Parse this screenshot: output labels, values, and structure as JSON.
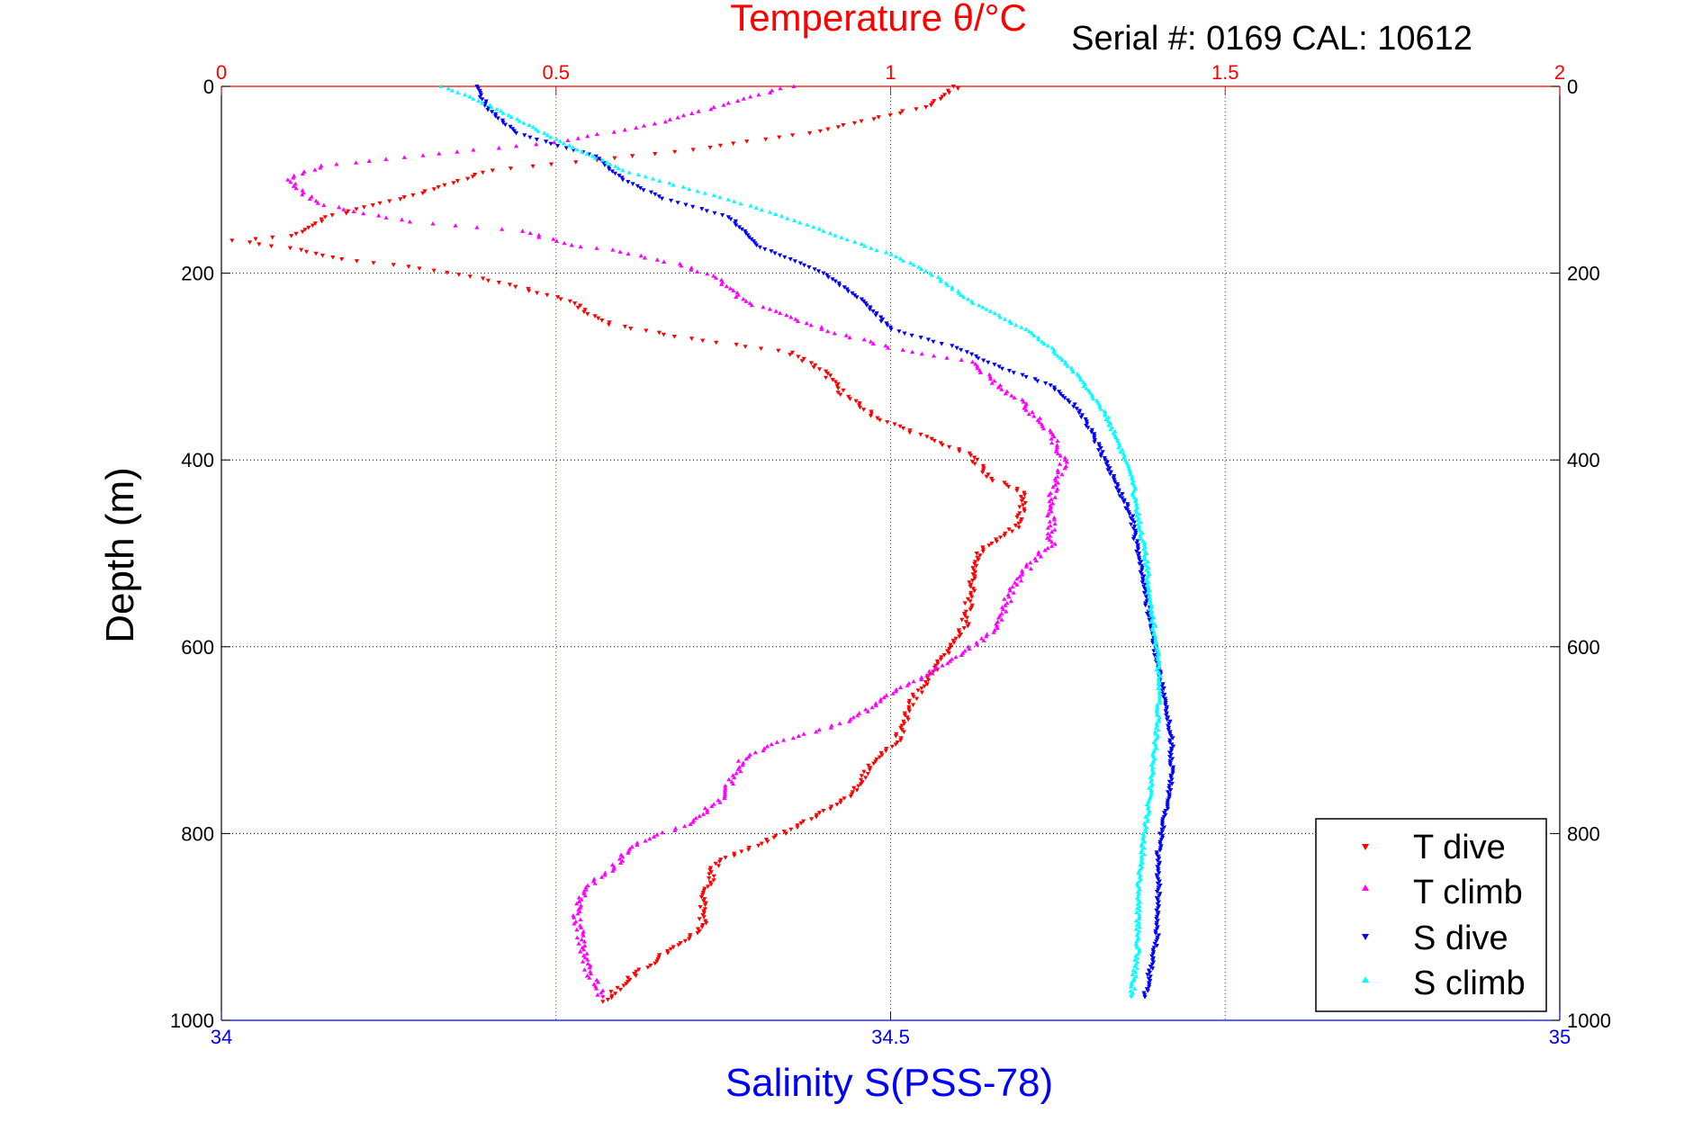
{
  "chart_data": {
    "type": "scatter",
    "title": "Temperature θ/°C",
    "subtitle": "Serial #: 0169 CAL: 10612",
    "ylabel": "Depth (m)",
    "top_xlabel": "Temperature θ/°C",
    "bottom_xlabel": "Salinity S(PSS-78)",
    "ylim": [
      0,
      1000
    ],
    "y_reversed": true,
    "temperature_xlim": [
      0,
      2
    ],
    "salinity_xlim": [
      34,
      35
    ],
    "temperature_ticks": [
      "0",
      "0.5",
      "1",
      "1.5",
      "2"
    ],
    "salinity_ticks": [
      "34",
      "34.5",
      "35"
    ],
    "depth_ticks": [
      "0",
      "200",
      "400",
      "600",
      "800",
      "1000"
    ],
    "grid": true,
    "legend_position": "bottom-right",
    "series": [
      {
        "name": "T dive",
        "axis": "temperature",
        "marker": "triangle-down",
        "color": "#ff0000",
        "points": [
          [
            1.1,
            0
          ],
          [
            1.06,
            20
          ],
          [
            0.88,
            50
          ],
          [
            0.68,
            70
          ],
          [
            0.4,
            90
          ],
          [
            0.32,
            110
          ],
          [
            0.16,
            140
          ],
          [
            0.11,
            160
          ],
          [
            0.02,
            165
          ],
          [
            0.12,
            175
          ],
          [
            0.18,
            185
          ],
          [
            0.3,
            195
          ],
          [
            0.42,
            210
          ],
          [
            0.52,
            230
          ],
          [
            0.58,
            255
          ],
          [
            0.7,
            270
          ],
          [
            0.85,
            285
          ],
          [
            0.9,
            305
          ],
          [
            0.93,
            330
          ],
          [
            0.98,
            355
          ],
          [
            1.05,
            375
          ],
          [
            1.12,
            395
          ],
          [
            1.15,
            420
          ],
          [
            1.2,
            435
          ],
          [
            1.19,
            470
          ],
          [
            1.13,
            500
          ],
          [
            1.12,
            540
          ],
          [
            1.11,
            580
          ],
          [
            1.07,
            620
          ],
          [
            1.03,
            660
          ],
          [
            1.01,
            700
          ],
          [
            0.97,
            725
          ],
          [
            0.94,
            760
          ],
          [
            0.84,
            800
          ],
          [
            0.74,
            830
          ],
          [
            0.72,
            870
          ],
          [
            0.72,
            900
          ],
          [
            0.66,
            930
          ],
          [
            0.62,
            950
          ],
          [
            0.57,
            980
          ]
        ]
      },
      {
        "name": "T climb",
        "axis": "temperature",
        "marker": "triangle-up",
        "color": "#ff00ff",
        "points": [
          [
            0.85,
            0
          ],
          [
            0.75,
            20
          ],
          [
            0.65,
            40
          ],
          [
            0.5,
            60
          ],
          [
            0.35,
            70
          ],
          [
            0.22,
            80
          ],
          [
            0.15,
            85
          ],
          [
            0.1,
            100
          ],
          [
            0.14,
            125
          ],
          [
            0.28,
            145
          ],
          [
            0.45,
            155
          ],
          [
            0.52,
            170
          ],
          [
            0.58,
            175
          ],
          [
            0.68,
            190
          ],
          [
            0.74,
            205
          ],
          [
            0.78,
            230
          ],
          [
            0.9,
            260
          ],
          [
            1.0,
            280
          ],
          [
            1.12,
            295
          ],
          [
            1.16,
            320
          ],
          [
            1.2,
            340
          ],
          [
            1.24,
            375
          ],
          [
            1.26,
            400
          ],
          [
            1.24,
            440
          ],
          [
            1.24,
            490
          ],
          [
            1.21,
            510
          ],
          [
            1.18,
            540
          ],
          [
            1.16,
            580
          ],
          [
            1.08,
            620
          ],
          [
            1.0,
            650
          ],
          [
            0.94,
            680
          ],
          [
            0.84,
            700
          ],
          [
            0.78,
            720
          ],
          [
            0.75,
            760
          ],
          [
            0.7,
            790
          ],
          [
            0.62,
            810
          ],
          [
            0.58,
            840
          ],
          [
            0.54,
            860
          ],
          [
            0.53,
            890
          ],
          [
            0.54,
            920
          ],
          [
            0.55,
            950
          ],
          [
            0.57,
            975
          ]
        ]
      },
      {
        "name": "S dive",
        "axis": "salinity",
        "marker": "triangle-down",
        "color": "#0000ff",
        "points": [
          [
            34.19,
            0
          ],
          [
            34.2,
            25
          ],
          [
            34.22,
            50
          ],
          [
            34.28,
            75
          ],
          [
            34.3,
            100
          ],
          [
            34.33,
            120
          ],
          [
            34.38,
            140
          ],
          [
            34.4,
            170
          ],
          [
            34.45,
            200
          ],
          [
            34.48,
            230
          ],
          [
            34.5,
            260
          ],
          [
            34.55,
            280
          ],
          [
            34.58,
            300
          ],
          [
            34.62,
            320
          ],
          [
            34.64,
            345
          ],
          [
            34.65,
            370
          ],
          [
            34.66,
            400
          ],
          [
            34.67,
            430
          ],
          [
            34.68,
            460
          ],
          [
            34.685,
            500
          ],
          [
            34.69,
            540
          ],
          [
            34.695,
            580
          ],
          [
            34.7,
            620
          ],
          [
            34.705,
            660
          ],
          [
            34.71,
            700
          ],
          [
            34.71,
            740
          ],
          [
            34.705,
            780
          ],
          [
            34.7,
            820
          ],
          [
            34.7,
            860
          ],
          [
            34.7,
            900
          ],
          [
            34.695,
            940
          ],
          [
            34.69,
            975
          ]
        ]
      },
      {
        "name": "S climb",
        "axis": "salinity",
        "marker": "triangle-up",
        "color": "#00ffff",
        "points": [
          [
            34.165,
            0
          ],
          [
            34.2,
            20
          ],
          [
            34.24,
            50
          ],
          [
            34.27,
            70
          ],
          [
            34.3,
            90
          ],
          [
            34.35,
            110
          ],
          [
            34.4,
            130
          ],
          [
            34.45,
            155
          ],
          [
            34.5,
            180
          ],
          [
            34.53,
            200
          ],
          [
            34.56,
            230
          ],
          [
            34.6,
            260
          ],
          [
            34.62,
            280
          ],
          [
            34.64,
            310
          ],
          [
            34.66,
            350
          ],
          [
            34.67,
            380
          ],
          [
            34.68,
            420
          ],
          [
            34.685,
            460
          ],
          [
            34.69,
            500
          ],
          [
            34.695,
            560
          ],
          [
            34.7,
            620
          ],
          [
            34.7,
            680
          ],
          [
            34.695,
            740
          ],
          [
            34.69,
            800
          ],
          [
            34.685,
            860
          ],
          [
            34.685,
            920
          ],
          [
            34.68,
            975
          ]
        ]
      }
    ]
  }
}
